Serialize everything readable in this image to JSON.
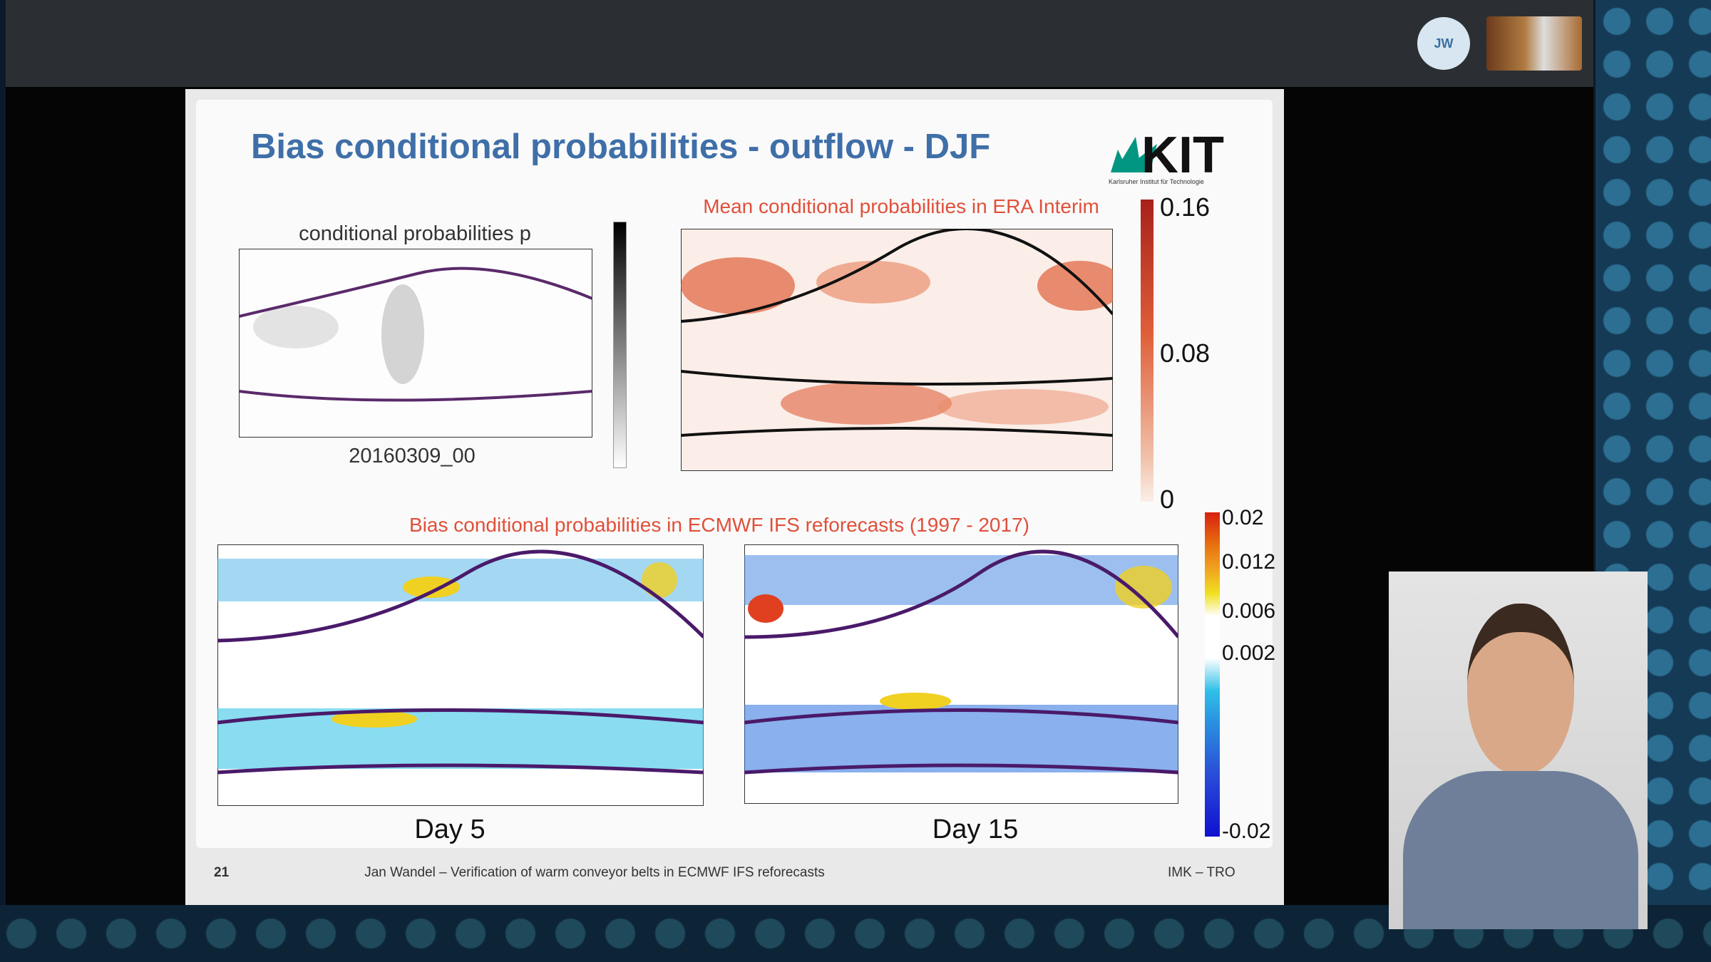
{
  "participant": {
    "initials": "JW"
  },
  "slide": {
    "title": "Bias conditional probabilities - outflow - DJF",
    "logo": {
      "text": "KIT",
      "subtitle": "Karlsruher Institut für Technologie"
    },
    "panel_p": {
      "title": "conditional probabilities p",
      "date": "20160309_00"
    },
    "panel_era": {
      "title": "Mean conditional probabilities in ERA Interim",
      "colorbar": [
        "0.16",
        "0.08",
        "0"
      ]
    },
    "panel_bias": {
      "title": "Bias conditional probabilities in ECMWF IFS reforecasts (1997 - 2017)",
      "maps": [
        "Day 5",
        "Day 15"
      ],
      "colorbar": [
        "0.02",
        "0.012",
        "0.006",
        "0.002",
        "-0.02"
      ]
    },
    "footer": {
      "page": "21",
      "text": "Jan Wandel – Verification of warm conveyor belts in ECMWF IFS reforecasts",
      "group": "IMK – TRO"
    }
  }
}
